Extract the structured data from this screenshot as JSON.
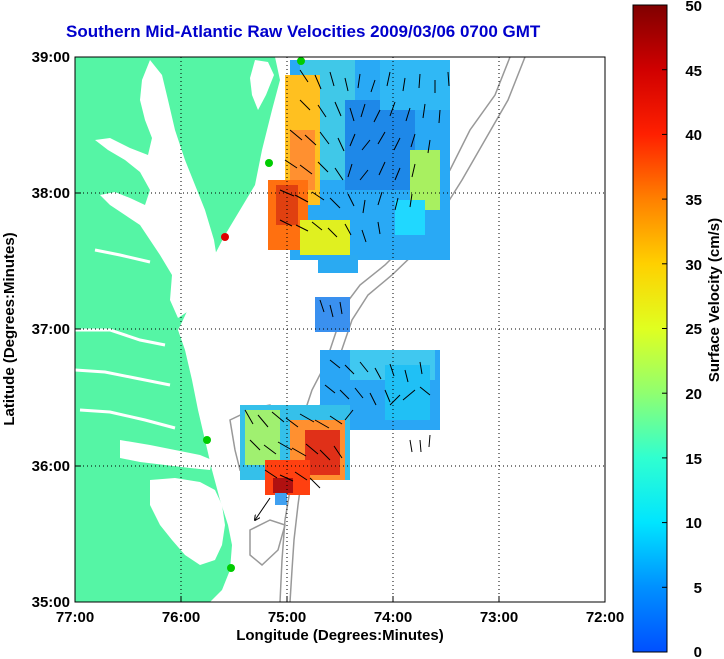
{
  "title": "Southern Mid-Atlantic Raw Velocities 2009/03/06 0700 GMT",
  "xlabel": "Longitude (Degrees:Minutes)",
  "ylabel": "Latitude (Degrees:Minutes)",
  "x_ticks": [
    "77:00",
    "76:00",
    "75:00",
    "74:00",
    "73:00",
    "72:00"
  ],
  "y_ticks": [
    "39:00",
    "38:00",
    "37:00",
    "36:00",
    "35:00"
  ],
  "colorbar": {
    "label": "Surface Velocity (cm/s)",
    "ticks": [
      "50",
      "45",
      "40",
      "35",
      "30",
      "25",
      "20",
      "15",
      "10",
      "5",
      "0"
    ]
  },
  "colors": {
    "land": "#55f5a5",
    "title": "#0000cc",
    "bathymetry": "#999999",
    "station_green": "#00cc00",
    "station_red": "#dd0000"
  }
}
